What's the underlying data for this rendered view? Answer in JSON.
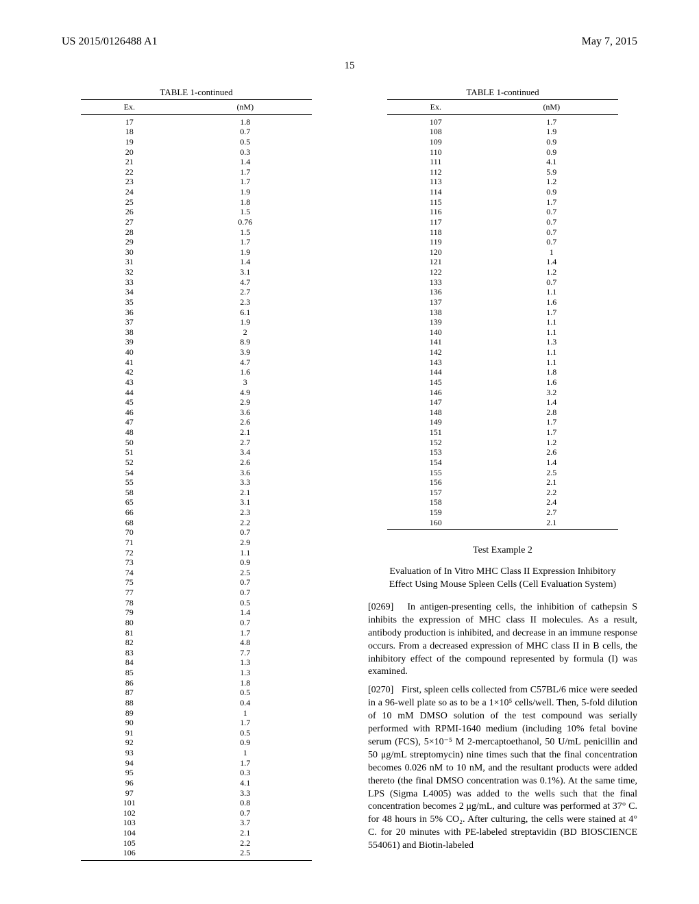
{
  "header": {
    "left": "US 2015/0126488 A1",
    "right": "May 7, 2015"
  },
  "page_number": "15",
  "table_left": {
    "title": "TABLE 1-continued",
    "col1": "Ex.",
    "col2": "(nM)",
    "rows": [
      [
        "17",
        "1.8"
      ],
      [
        "18",
        "0.7"
      ],
      [
        "19",
        "0.5"
      ],
      [
        "20",
        "0.3"
      ],
      [
        "21",
        "1.4"
      ],
      [
        "22",
        "1.7"
      ],
      [
        "23",
        "1.7"
      ],
      [
        "24",
        "1.9"
      ],
      [
        "25",
        "1.8"
      ],
      [
        "26",
        "1.5"
      ],
      [
        "27",
        "0.76"
      ],
      [
        "28",
        "1.5"
      ],
      [
        "29",
        "1.7"
      ],
      [
        "30",
        "1.9"
      ],
      [
        "31",
        "1.4"
      ],
      [
        "32",
        "3.1"
      ],
      [
        "33",
        "4.7"
      ],
      [
        "34",
        "2.7"
      ],
      [
        "35",
        "2.3"
      ],
      [
        "36",
        "6.1"
      ],
      [
        "37",
        "1.9"
      ],
      [
        "38",
        "2"
      ],
      [
        "39",
        "8.9"
      ],
      [
        "40",
        "3.9"
      ],
      [
        "41",
        "4.7"
      ],
      [
        "42",
        "1.6"
      ],
      [
        "43",
        "3"
      ],
      [
        "44",
        "4.9"
      ],
      [
        "45",
        "2.9"
      ],
      [
        "46",
        "3.6"
      ],
      [
        "47",
        "2.6"
      ],
      [
        "48",
        "2.1"
      ],
      [
        "50",
        "2.7"
      ],
      [
        "51",
        "3.4"
      ],
      [
        "52",
        "2.6"
      ],
      [
        "54",
        "3.6"
      ],
      [
        "55",
        "3.3"
      ],
      [
        "58",
        "2.1"
      ],
      [
        "65",
        "3.1"
      ],
      [
        "66",
        "2.3"
      ],
      [
        "68",
        "2.2"
      ],
      [
        "70",
        "0.7"
      ],
      [
        "71",
        "2.9"
      ],
      [
        "72",
        "1.1"
      ],
      [
        "73",
        "0.9"
      ],
      [
        "74",
        "2.5"
      ],
      [
        "75",
        "0.7"
      ],
      [
        "77",
        "0.7"
      ],
      [
        "78",
        "0.5"
      ],
      [
        "79",
        "1.4"
      ],
      [
        "80",
        "0.7"
      ],
      [
        "81",
        "1.7"
      ],
      [
        "82",
        "4.8"
      ],
      [
        "83",
        "7.7"
      ],
      [
        "84",
        "1.3"
      ],
      [
        "85",
        "1.3"
      ],
      [
        "86",
        "1.8"
      ],
      [
        "87",
        "0.5"
      ],
      [
        "88",
        "0.4"
      ],
      [
        "89",
        "1"
      ],
      [
        "90",
        "1.7"
      ],
      [
        "91",
        "0.5"
      ],
      [
        "92",
        "0.9"
      ],
      [
        "93",
        "1"
      ],
      [
        "94",
        "1.7"
      ],
      [
        "95",
        "0.3"
      ],
      [
        "96",
        "4.1"
      ],
      [
        "97",
        "3.3"
      ],
      [
        "101",
        "0.8"
      ],
      [
        "102",
        "0.7"
      ],
      [
        "103",
        "3.7"
      ],
      [
        "104",
        "2.1"
      ],
      [
        "105",
        "2.2"
      ],
      [
        "106",
        "2.5"
      ]
    ]
  },
  "table_right": {
    "title": "TABLE 1-continued",
    "col1": "Ex.",
    "col2": "(nM)",
    "rows": [
      [
        "107",
        "1.7"
      ],
      [
        "108",
        "1.9"
      ],
      [
        "109",
        "0.9"
      ],
      [
        "110",
        "0.9"
      ],
      [
        "111",
        "4.1"
      ],
      [
        "112",
        "5.9"
      ],
      [
        "113",
        "1.2"
      ],
      [
        "114",
        "0.9"
      ],
      [
        "115",
        "1.7"
      ],
      [
        "116",
        "0.7"
      ],
      [
        "117",
        "0.7"
      ],
      [
        "118",
        "0.7"
      ],
      [
        "119",
        "0.7"
      ],
      [
        "120",
        "1"
      ],
      [
        "121",
        "1.4"
      ],
      [
        "122",
        "1.2"
      ],
      [
        "133",
        "0.7"
      ],
      [
        "136",
        "1.1"
      ],
      [
        "137",
        "1.6"
      ],
      [
        "138",
        "1.7"
      ],
      [
        "139",
        "1.1"
      ],
      [
        "140",
        "1.1"
      ],
      [
        "141",
        "1.3"
      ],
      [
        "142",
        "1.1"
      ],
      [
        "143",
        "1.1"
      ],
      [
        "144",
        "1.8"
      ],
      [
        "145",
        "1.6"
      ],
      [
        "146",
        "3.2"
      ],
      [
        "147",
        "1.4"
      ],
      [
        "148",
        "2.8"
      ],
      [
        "149",
        "1.7"
      ],
      [
        "151",
        "1.7"
      ],
      [
        "152",
        "1.2"
      ],
      [
        "153",
        "2.6"
      ],
      [
        "154",
        "1.4"
      ],
      [
        "155",
        "2.5"
      ],
      [
        "156",
        "2.1"
      ],
      [
        "157",
        "2.2"
      ],
      [
        "158",
        "2.4"
      ],
      [
        "159",
        "2.7"
      ],
      [
        "160",
        "2.1"
      ]
    ]
  },
  "test_example": {
    "title": "Test Example 2",
    "subtitle": "Evaluation of In Vitro MHC Class II Expression Inhibitory Effect Using Mouse Spleen Cells (Cell Evaluation System)",
    "para1_num": "[0269]",
    "para1": "In antigen-presenting cells, the inhibition of cathepsin S inhibits the expression of MHC class II molecules. As a result, antibody production is inhibited, and decrease in an immune response occurs. From a decreased expression of MHC class II in B cells, the inhibitory effect of the compound represented by formula (I) was examined.",
    "para2_num": "[0270]",
    "para2": "First, spleen cells collected from C57BL/6 mice were seeded in a 96-well plate so as to be a 1×10⁵ cells/well. Then, 5-fold dilution of 10 mM DMSO solution of the test compound was serially performed with RPMI-1640 medium (including 10% fetal bovine serum (FCS), 5×10⁻⁵ M 2-mercaptoethanol, 50 U/mL penicillin and 50 μg/mL streptomycin) nine times such that the final concentration becomes 0.026 nM to 10 nM, and the resultant products were added thereto (the final DMSO concentration was 0.1%). At the same time, LPS (Sigma L4005) was added to the wells such that the final concentration becomes 2 μg/mL, and culture was performed at 37° C. for 48 hours in 5% CO₂. After culturing, the cells were stained at 4° C. for 20 minutes with PE-labeled streptavidin (BD BIOSCIENCE 554061) and Biotin-labeled"
  }
}
